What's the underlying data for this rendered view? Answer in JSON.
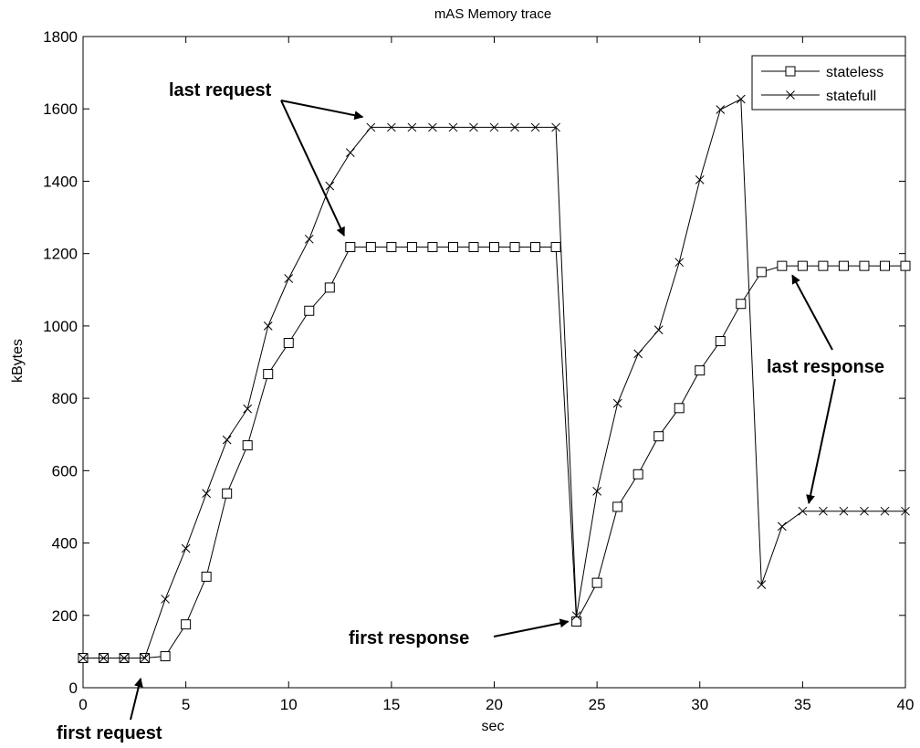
{
  "chart_data": {
    "type": "line",
    "title": "mAS Memory trace",
    "xlabel": "sec",
    "ylabel": "kBytes",
    "xlim": [
      0,
      40
    ],
    "ylim": [
      0,
      1800
    ],
    "xticks": [
      0,
      5,
      10,
      15,
      20,
      25,
      30,
      35,
      40
    ],
    "yticks": [
      0,
      200,
      400,
      600,
      800,
      1000,
      1200,
      1400,
      1600,
      1800
    ],
    "grid": false,
    "legend_position": "top-right",
    "series": [
      {
        "name": "stateless",
        "marker": "square",
        "color": "#000000",
        "x": [
          0,
          1,
          2,
          3,
          4,
          5,
          6,
          7,
          8,
          9,
          10,
          11,
          12,
          13,
          14,
          15,
          16,
          17,
          18,
          19,
          20,
          21,
          22,
          23,
          24,
          25,
          26,
          27,
          28,
          29,
          30,
          31,
          32,
          33,
          34,
          35,
          36,
          37,
          38,
          39,
          40
        ],
        "y": [
          82,
          82,
          82,
          82,
          87,
          175,
          307,
          537,
          670,
          867,
          953,
          1042,
          1106,
          1218,
          1218,
          1218,
          1218,
          1218,
          1218,
          1218,
          1218,
          1218,
          1218,
          1218,
          183,
          290,
          500,
          590,
          695,
          773,
          877,
          958,
          1061,
          1149,
          1166,
          1166,
          1166,
          1166,
          1166,
          1166,
          1166
        ]
      },
      {
        "name": "statefull",
        "marker": "x",
        "color": "#000000",
        "x": [
          0,
          1,
          2,
          3,
          4,
          5,
          6,
          7,
          8,
          9,
          10,
          11,
          12,
          13,
          14,
          15,
          16,
          17,
          18,
          19,
          20,
          21,
          22,
          23,
          24,
          25,
          26,
          27,
          28,
          29,
          30,
          31,
          32,
          33,
          34,
          35,
          36,
          37,
          38,
          39,
          40
        ],
        "y": [
          82,
          82,
          82,
          82,
          245,
          385,
          537,
          685,
          771,
          1000,
          1131,
          1240,
          1387,
          1479,
          1549,
          1549,
          1549,
          1549,
          1549,
          1549,
          1549,
          1549,
          1549,
          1549,
          199,
          543,
          786,
          923,
          989,
          1176,
          1404,
          1598,
          1627,
          285,
          446,
          488,
          488,
          488,
          488,
          488,
          488
        ]
      }
    ],
    "annotations": [
      {
        "text": "last request"
      },
      {
        "text": "first request"
      },
      {
        "text": "first response"
      },
      {
        "text": "last response"
      }
    ]
  }
}
